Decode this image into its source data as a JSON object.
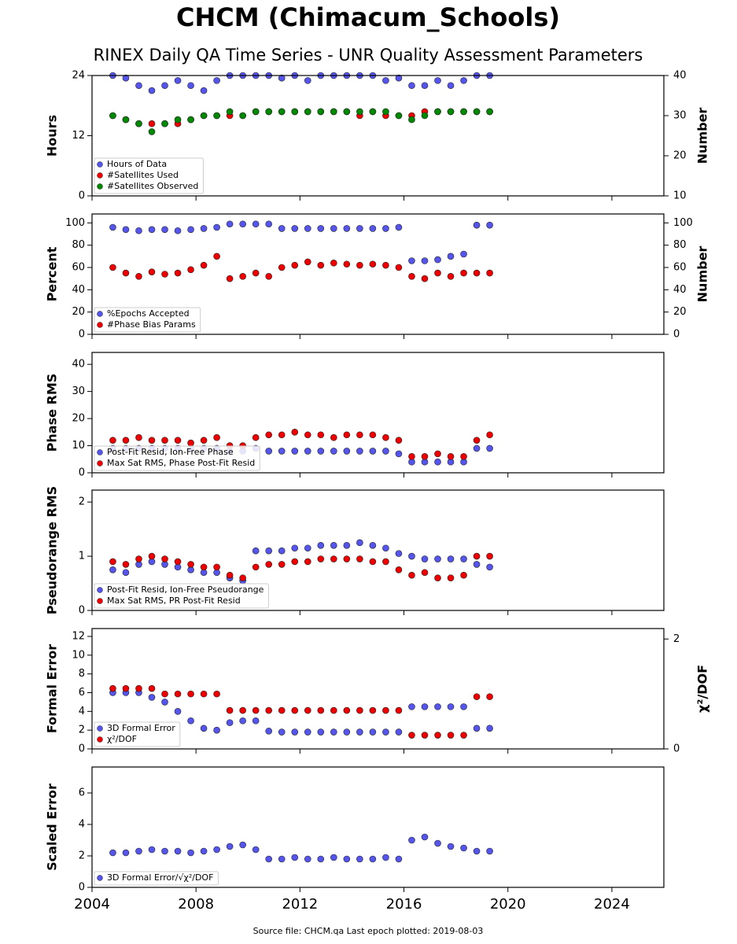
{
  "title": "CHCM (Chimacum_Schools)",
  "subtitle": "RINEX Daily QA Time Series - UNR Quality Assessment Parameters",
  "source_note": "Source file: CHCM.qa Last epoch plotted: 2019-08-03",
  "chart_data": [
    {
      "type": "scatter",
      "ylabel": "Hours",
      "y2label": "Number",
      "legend": "lower left",
      "xlim": [
        2004,
        2026
      ],
      "xticks": [
        2004,
        2008,
        2012,
        2016,
        2020,
        2024
      ],
      "ylim": [
        0,
        24
      ],
      "yticks": [
        0,
        12,
        24
      ],
      "y2lim": [
        10,
        40
      ],
      "y2ticks": [
        10,
        20,
        30,
        40
      ],
      "x": [
        2004.8,
        2005.3,
        2005.8,
        2006.3,
        2006.8,
        2007.3,
        2007.8,
        2008.3,
        2008.8,
        2009.3,
        2009.8,
        2010.3,
        2010.8,
        2011.3,
        2011.8,
        2012.3,
        2012.8,
        2013.3,
        2013.8,
        2014.3,
        2014.8,
        2015.3,
        2015.8,
        2016.3,
        2016.8,
        2017.3,
        2017.8,
        2018.3,
        2018.8,
        2019.3
      ],
      "series": [
        {
          "name": "Hours of Data",
          "color": "#5555ee",
          "values": [
            24,
            23.5,
            22,
            21,
            22,
            23,
            22,
            21,
            23,
            24,
            24,
            24,
            24,
            23.5,
            24,
            23,
            24,
            24,
            24,
            24,
            24,
            23,
            23.5,
            22,
            22,
            23,
            22,
            23,
            24,
            24
          ]
        },
        {
          "name": "#Satellites Used",
          "color": "#ee0000",
          "axis": "y2",
          "values": [
            30,
            29,
            28,
            28,
            28,
            28,
            29,
            30,
            30,
            30,
            30,
            31,
            31,
            31,
            31,
            31,
            31,
            31,
            31,
            30,
            31,
            30,
            30,
            30,
            31,
            31,
            31,
            31,
            31,
            31
          ]
        },
        {
          "name": "#Satellites Observed",
          "color": "#008800",
          "axis": "y2",
          "values": [
            30,
            29,
            28,
            26,
            28,
            29,
            29,
            30,
            30,
            31,
            30,
            31,
            31,
            31,
            31,
            31,
            31,
            31,
            31,
            31,
            31,
            31,
            30,
            29,
            30,
            31,
            31,
            31,
            31,
            31
          ]
        }
      ]
    },
    {
      "type": "scatter",
      "ylabel": "Percent",
      "y2label": "Number",
      "legend": "lower left",
      "xlim": [
        2004,
        2026
      ],
      "xticks": [
        2004,
        2008,
        2012,
        2016,
        2020,
        2024
      ],
      "ylim": [
        0,
        108
      ],
      "yticks": [
        0,
        20,
        40,
        60,
        80,
        100
      ],
      "y2lim": [
        0,
        108
      ],
      "y2ticks": [
        0,
        20,
        40,
        60,
        80,
        100
      ],
      "x": [
        2004.8,
        2005.3,
        2005.8,
        2006.3,
        2006.8,
        2007.3,
        2007.8,
        2008.3,
        2008.8,
        2009.3,
        2009.8,
        2010.3,
        2010.8,
        2011.3,
        2011.8,
        2012.3,
        2012.8,
        2013.3,
        2013.8,
        2014.3,
        2014.8,
        2015.3,
        2015.8,
        2016.3,
        2016.8,
        2017.3,
        2017.8,
        2018.3,
        2018.8,
        2019.3
      ],
      "series": [
        {
          "name": "%Epochs Accepted",
          "color": "#5555ee",
          "values": [
            96,
            94,
            93,
            94,
            94,
            93,
            94,
            95,
            96,
            99,
            99,
            99,
            99,
            95,
            95,
            95,
            95,
            95,
            95,
            95,
            95,
            95,
            96,
            66,
            66,
            67,
            70,
            72,
            98,
            98
          ]
        },
        {
          "name": "#Phase Bias Params",
          "color": "#ee0000",
          "axis": "y2",
          "values": [
            60,
            55,
            52,
            56,
            54,
            55,
            58,
            62,
            70,
            50,
            52,
            55,
            52,
            60,
            62,
            65,
            62,
            64,
            63,
            62,
            63,
            62,
            60,
            52,
            50,
            55,
            52,
            55,
            55,
            55
          ]
        }
      ]
    },
    {
      "type": "scatter",
      "ylabel": "Phase RMS",
      "legend": "lower left",
      "xlim": [
        2004,
        2026
      ],
      "xticks": [
        2004,
        2008,
        2012,
        2016,
        2020,
        2024
      ],
      "ylim": [
        0,
        44.4
      ],
      "yticks": [
        0,
        10,
        20,
        30,
        40
      ],
      "x": [
        2004.8,
        2005.3,
        2005.8,
        2006.3,
        2006.8,
        2007.3,
        2007.8,
        2008.3,
        2008.8,
        2009.3,
        2009.8,
        2010.3,
        2010.8,
        2011.3,
        2011.8,
        2012.3,
        2012.8,
        2013.3,
        2013.8,
        2014.3,
        2014.8,
        2015.3,
        2015.8,
        2016.3,
        2016.8,
        2017.3,
        2017.8,
        2018.3,
        2018.8,
        2019.3
      ],
      "series": [
        {
          "name": "Post-Fit Resid, Ion-Free Phase",
          "color": "#5555ee",
          "values": [
            9,
            9,
            9,
            9,
            9,
            9,
            9,
            9,
            9,
            8,
            8,
            9,
            8,
            8,
            8,
            8,
            8,
            8,
            8,
            8,
            8,
            8,
            7,
            4,
            4,
            4,
            4,
            4,
            9,
            9
          ]
        },
        {
          "name": "Max Sat RMS, Phase Post-Fit Resid",
          "color": "#ee0000",
          "values": [
            12,
            12,
            13,
            12,
            12,
            12,
            11,
            12,
            13,
            10,
            10,
            13,
            14,
            14,
            15,
            14,
            14,
            13,
            14,
            14,
            14,
            13,
            12,
            6,
            6,
            7,
            6,
            6,
            12,
            14
          ]
        }
      ]
    },
    {
      "type": "scatter",
      "ylabel": "Pseudorange RMS",
      "legend": "lower left",
      "xlim": [
        2004,
        2026
      ],
      "xticks": [
        2004,
        2008,
        2012,
        2016,
        2020,
        2024
      ],
      "ylim": [
        0,
        2.22
      ],
      "yticks": [
        0,
        1,
        2
      ],
      "x": [
        2004.8,
        2005.3,
        2005.8,
        2006.3,
        2006.8,
        2007.3,
        2007.8,
        2008.3,
        2008.8,
        2009.3,
        2009.8,
        2010.3,
        2010.8,
        2011.3,
        2011.8,
        2012.3,
        2012.8,
        2013.3,
        2013.8,
        2014.3,
        2014.8,
        2015.3,
        2015.8,
        2016.3,
        2016.8,
        2017.3,
        2017.8,
        2018.3,
        2018.8,
        2019.3
      ],
      "series": [
        {
          "name": "Post-Fit Resid, Ion-Free Pseudorange",
          "color": "#5555ee",
          "values": [
            0.75,
            0.7,
            0.85,
            0.9,
            0.85,
            0.8,
            0.75,
            0.7,
            0.7,
            0.6,
            0.55,
            1.1,
            1.1,
            1.1,
            1.15,
            1.15,
            1.2,
            1.2,
            1.2,
            1.25,
            1.2,
            1.15,
            1.05,
            1.0,
            0.95,
            0.95,
            0.95,
            0.95,
            0.85,
            0.8
          ]
        },
        {
          "name": "Max Sat RMS, PR Post-Fit Resid",
          "color": "#ee0000",
          "values": [
            0.9,
            0.85,
            0.95,
            1.0,
            0.95,
            0.9,
            0.85,
            0.8,
            0.8,
            0.65,
            0.6,
            0.8,
            0.85,
            0.85,
            0.9,
            0.9,
            0.95,
            0.95,
            0.95,
            0.95,
            0.9,
            0.9,
            0.75,
            0.65,
            0.7,
            0.6,
            0.6,
            0.65,
            1.0,
            1.0
          ]
        }
      ]
    },
    {
      "type": "scatter",
      "ylabel": "Formal Error",
      "y2label": "χ²/DOF",
      "legend": "lower left",
      "xlim": [
        2004,
        2026
      ],
      "xticks": [
        2004,
        2008,
        2012,
        2016,
        2020,
        2024
      ],
      "ylim": [
        0,
        12.84
      ],
      "yticks": [
        0,
        2,
        4,
        6,
        8,
        10,
        12
      ],
      "y2lim": [
        0,
        2.19
      ],
      "y2ticks": [
        0,
        2
      ],
      "x": [
        2004.8,
        2005.3,
        2005.8,
        2006.3,
        2006.8,
        2007.3,
        2007.8,
        2008.3,
        2008.8,
        2009.3,
        2009.8,
        2010.3,
        2010.8,
        2011.3,
        2011.8,
        2012.3,
        2012.8,
        2013.3,
        2013.8,
        2014.3,
        2014.8,
        2015.3,
        2015.8,
        2016.3,
        2016.8,
        2017.3,
        2017.8,
        2018.3,
        2018.8,
        2019.3
      ],
      "series": [
        {
          "name": "3D Formal Error",
          "color": "#5555ee",
          "values": [
            6,
            6,
            6,
            5.5,
            5,
            4,
            3,
            2.2,
            2,
            2.8,
            3,
            3,
            1.9,
            1.8,
            1.8,
            1.8,
            1.8,
            1.8,
            1.8,
            1.8,
            1.8,
            1.8,
            1.8,
            4.5,
            4.5,
            4.5,
            4.5,
            4.5,
            2.2,
            2.2
          ]
        },
        {
          "name": "χ²/DOF",
          "color": "#ee0000",
          "axis": "y2",
          "values": [
            1.1,
            1.1,
            1.1,
            1.1,
            1.0,
            1.0,
            1.0,
            1.0,
            1.0,
            0.7,
            0.7,
            0.7,
            0.7,
            0.7,
            0.7,
            0.7,
            0.7,
            0.7,
            0.7,
            0.7,
            0.7,
            0.7,
            0.7,
            0.25,
            0.25,
            0.25,
            0.25,
            0.25,
            0.95,
            0.95
          ]
        }
      ]
    },
    {
      "type": "scatter",
      "ylabel": "Scaled Error",
      "legend": "lower left",
      "xlim": [
        2004,
        2026
      ],
      "xticks": [
        2004,
        2008,
        2012,
        2016,
        2020,
        2024
      ],
      "ylim": [
        0,
        7.65
      ],
      "yticks": [
        0,
        2,
        4,
        6
      ],
      "x": [
        2004.8,
        2005.3,
        2005.8,
        2006.3,
        2006.8,
        2007.3,
        2007.8,
        2008.3,
        2008.8,
        2009.3,
        2009.8,
        2010.3,
        2010.8,
        2011.3,
        2011.8,
        2012.3,
        2012.8,
        2013.3,
        2013.8,
        2014.3,
        2014.8,
        2015.3,
        2015.8,
        2016.3,
        2016.8,
        2017.3,
        2017.8,
        2018.3,
        2018.8,
        2019.3
      ],
      "series": [
        {
          "name": "3D Formal Error/√χ²/DOF",
          "color": "#5555ee",
          "values": [
            2.2,
            2.2,
            2.3,
            2.4,
            2.3,
            2.3,
            2.2,
            2.3,
            2.4,
            2.6,
            2.7,
            2.4,
            1.8,
            1.8,
            1.9,
            1.8,
            1.8,
            1.9,
            1.8,
            1.8,
            1.8,
            1.9,
            1.8,
            3.0,
            3.2,
            2.8,
            2.6,
            2.5,
            2.3,
            2.3
          ]
        }
      ]
    }
  ]
}
